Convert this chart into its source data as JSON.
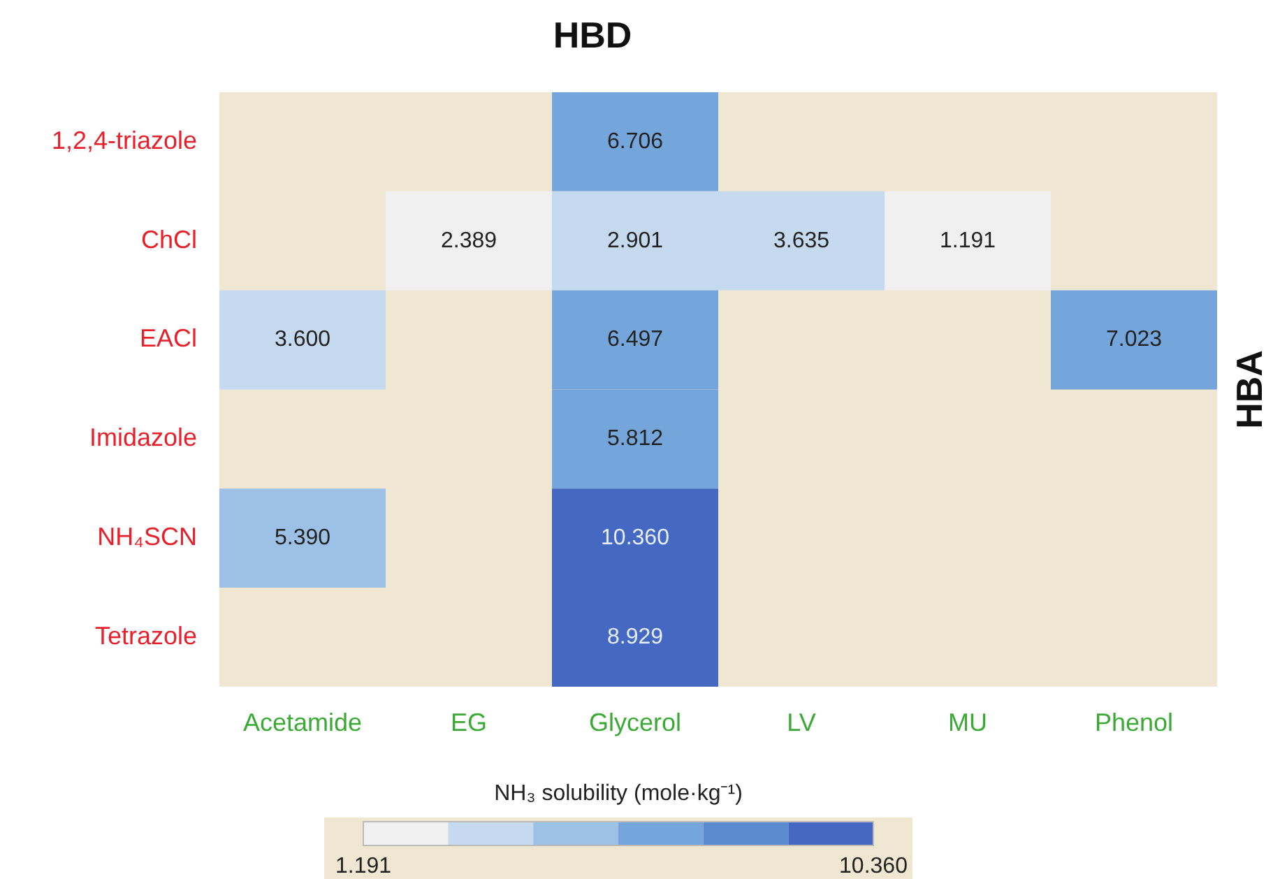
{
  "chart_data": {
    "type": "heatmap",
    "xlabel": "HBD",
    "ylabel": "HBA",
    "clabel": "NH₃ solubility (mole·kg⁻¹)",
    "categories": [
      "Acetamide",
      "EG",
      "Glycerol",
      "LV",
      "MU",
      "Phenol"
    ],
    "y_categories": [
      "1,2,4-triazole",
      "ChCl",
      "EACl",
      "Imidazole",
      "NH₄SCN",
      "Tetrazole"
    ],
    "cells": [
      [
        null,
        null,
        6.706,
        null,
        null,
        null
      ],
      [
        null,
        2.389,
        2.901,
        3.635,
        1.191,
        null
      ],
      [
        3.6,
        null,
        6.497,
        null,
        null,
        7.023
      ],
      [
        null,
        null,
        5.812,
        null,
        null,
        null
      ],
      [
        5.39,
        null,
        10.36,
        null,
        null,
        null
      ],
      [
        null,
        null,
        8.929,
        null,
        null,
        null
      ]
    ],
    "cell_labels": [
      [
        null,
        null,
        "6.706",
        null,
        null,
        null
      ],
      [
        null,
        "2.389",
        "2.901",
        "3.635",
        "1.191",
        null
      ],
      [
        "3.600",
        null,
        "6.497",
        null,
        null,
        "7.023"
      ],
      [
        null,
        null,
        "5.812",
        null,
        null,
        null
      ],
      [
        "5.390",
        null,
        "10.360",
        null,
        null,
        null
      ],
      [
        null,
        null,
        "8.929",
        null,
        null,
        null
      ]
    ],
    "colors": [
      "#f0f0f0",
      "#c5d9ef",
      "#9dc0e6",
      "#74a6dc",
      "#5a8bd0",
      "#4569c2"
    ],
    "clim": [
      1.191,
      10.36
    ],
    "cticks": [
      {
        "value": 1.191,
        "label": "1.191"
      },
      {
        "value": 10.36,
        "label": "10.360"
      }
    ]
  }
}
